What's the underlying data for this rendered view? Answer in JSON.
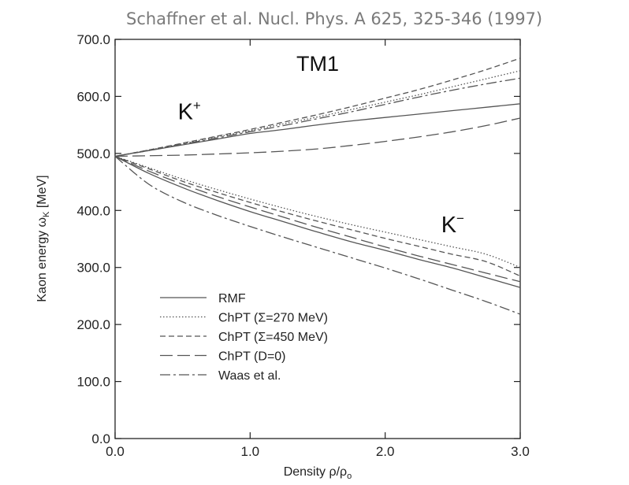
{
  "header": {
    "citation": "Schaffner et al. Nucl. Phys. A 625, 325-346 (1997)"
  },
  "chart_data": {
    "type": "line",
    "title": "",
    "xlabel": "Density ρ/ρ",
    "xlabel_sub": "o",
    "ylabel": "Kaon energy ω",
    "ylabel_sub": "K",
    "ylabel_unit": "[MeV]",
    "xlim": [
      0,
      3
    ],
    "ylim": [
      0,
      700
    ],
    "xticks": [
      0,
      1,
      2,
      3
    ],
    "xtick_labels": [
      "0.0",
      "1.0",
      "2.0",
      "3.0"
    ],
    "yticks": [
      0,
      100,
      200,
      300,
      400,
      500,
      600,
      700
    ],
    "ytick_labels": [
      "0.0",
      "100.0",
      "200.0",
      "300.0",
      "400.0",
      "500.0",
      "600.0",
      "700.0"
    ],
    "grid": false,
    "legend_position": "bottom-left",
    "annotations": [
      {
        "text": "TM1",
        "sup": "",
        "x": 1.5,
        "y": 645
      },
      {
        "text": "K",
        "sup": "+",
        "x": 0.55,
        "y": 560
      },
      {
        "text": "K",
        "sup": "−",
        "x": 2.5,
        "y": 362
      }
    ],
    "x": [
      0,
      0.25,
      0.5,
      0.75,
      1,
      1.25,
      1.5,
      1.75,
      2,
      2.25,
      2.5,
      2.75,
      3
    ],
    "series": [
      {
        "name": "RMF",
        "dash": "solid",
        "branch": "K+",
        "values": [
          495,
          505,
          515,
          525,
          535,
          542,
          550,
          557,
          563,
          569,
          575,
          581,
          587
        ]
      },
      {
        "name": "RMF",
        "dash": "solid",
        "branch": "K-",
        "values": [
          495,
          465,
          440,
          418,
          398,
          380,
          362,
          345,
          330,
          314,
          299,
          282,
          265
        ]
      },
      {
        "name": "ChPT (Σ=270 MeV)",
        "dash": "dotted",
        "branch": "K+",
        "values": [
          495,
          506,
          517,
          529,
          540,
          552,
          564,
          577,
          590,
          603,
          617,
          631,
          645
        ]
      },
      {
        "name": "ChPT (Σ=270 MeV)",
        "dash": "dotted",
        "branch": "K-",
        "values": [
          495,
          475,
          455,
          437,
          420,
          404,
          389,
          375,
          362,
          349,
          336,
          323,
          300
        ]
      },
      {
        "name": "ChPT (Σ=450 MeV)",
        "dash": "short-dash",
        "branch": "K+",
        "values": [
          495,
          506,
          518,
          530,
          542,
          555,
          568,
          582,
          597,
          612,
          629,
          647,
          667
        ]
      },
      {
        "name": "ChPT (Σ=450 MeV)",
        "dash": "short-dash",
        "branch": "K-",
        "values": [
          495,
          473,
          451,
          432,
          414,
          397,
          381,
          366,
          351,
          337,
          323,
          310,
          285
        ]
      },
      {
        "name": "ChPT (D=0)",
        "dash": "long-dash",
        "branch": "K+",
        "values": [
          495,
          496,
          497,
          499,
          501,
          504,
          508,
          514,
          521,
          529,
          538,
          549,
          562
        ]
      },
      {
        "name": "ChPT (D=0)",
        "dash": "long-dash",
        "branch": "K-",
        "values": [
          495,
          469,
          446,
          425,
          406,
          388,
          370,
          353,
          336,
          320,
          305,
          290,
          275
        ]
      },
      {
        "name": "Waas et al.",
        "dash": "dash-dot",
        "branch": "K+",
        "values": [
          495,
          505,
          516,
          527,
          538,
          549,
          561,
          573,
          586,
          599,
          611,
          622,
          632
        ]
      },
      {
        "name": "Waas et al.",
        "dash": "dash-dot",
        "branch": "K-",
        "values": [
          495,
          446,
          415,
          392,
          372,
          353,
          335,
          317,
          299,
          280,
          260,
          240,
          218
        ]
      }
    ],
    "legend": [
      {
        "label": "RMF",
        "dash": "solid"
      },
      {
        "label": "ChPT (Σ=270 MeV)",
        "dash": "dotted"
      },
      {
        "label": "ChPT (Σ=450 MeV)",
        "dash": "short-dash"
      },
      {
        "label": "ChPT (D=0)",
        "dash": "long-dash"
      },
      {
        "label": "Waas et al.",
        "dash": "dash-dot"
      }
    ],
    "colors": {
      "lines": "#555555",
      "axes": "#222222",
      "citation": "#7a7a7a"
    }
  }
}
